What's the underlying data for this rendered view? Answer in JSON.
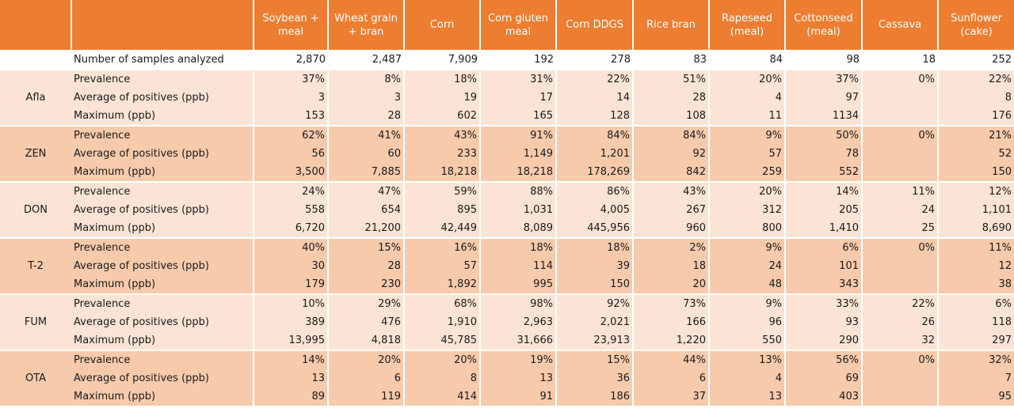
{
  "columns": [
    "",
    "",
    "Soybean + meal",
    "Wheat grain + bran",
    "Corn",
    "Corn gluten meal",
    "Corn DDGS",
    "Rice bran",
    "Rapeseed (meal)",
    "Cottonseed (meal)",
    "Cassava",
    "Sunflower (cake)"
  ],
  "samples": {
    "label": "Number of samples analyzed",
    "values": [
      "2,870",
      "2,487",
      "7,909",
      "192",
      "278",
      "83",
      "84",
      "98",
      "18",
      "252"
    ]
  },
  "groups": [
    {
      "name": "Afla",
      "shade": "light",
      "rows": [
        {
          "metric": "Prevalence",
          "values": [
            "37%",
            "8%",
            "18%",
            "31%",
            "22%",
            "51%",
            "20%",
            "37%",
            "0%",
            "22%"
          ]
        },
        {
          "metric": "Average of positives (ppb)",
          "values": [
            "3",
            "3",
            "19",
            "17",
            "14",
            "28",
            "4",
            "97",
            "",
            "8"
          ]
        },
        {
          "metric": "Maximum (ppb)",
          "values": [
            "153",
            "28",
            "602",
            "165",
            "128",
            "108",
            "11",
            "1134",
            "",
            "176"
          ]
        }
      ]
    },
    {
      "name": "ZEN",
      "shade": "dark",
      "rows": [
        {
          "metric": "Prevalence",
          "values": [
            "62%",
            "41%",
            "43%",
            "91%",
            "84%",
            "84%",
            "9%",
            "50%",
            "0%",
            "21%"
          ]
        },
        {
          "metric": "Average of positives (ppb)",
          "values": [
            "56",
            "60",
            "233",
            "1,149",
            "1,201",
            "92",
            "57",
            "78",
            "",
            "52"
          ]
        },
        {
          "metric": "Maximum (ppb)",
          "values": [
            "3,500",
            "7,885",
            "18,218",
            "18,218",
            "178,269",
            "842",
            "259",
            "552",
            "",
            "150"
          ]
        }
      ]
    },
    {
      "name": "DON",
      "shade": "light",
      "rows": [
        {
          "metric": "Prevalence",
          "values": [
            "24%",
            "47%",
            "59%",
            "88%",
            "86%",
            "43%",
            "20%",
            "14%",
            "11%",
            "12%"
          ]
        },
        {
          "metric": "Average of positives (ppb)",
          "values": [
            "558",
            "654",
            "895",
            "1,031",
            "4,005",
            "267",
            "312",
            "205",
            "24",
            "1,101"
          ]
        },
        {
          "metric": "Maximum (ppb)",
          "values": [
            "6,720",
            "21,200",
            "42,449",
            "8,089",
            "445,956",
            "960",
            "800",
            "1,410",
            "25",
            "8,690"
          ]
        }
      ]
    },
    {
      "name": "T-2",
      "shade": "dark",
      "rows": [
        {
          "metric": "Prevalence",
          "values": [
            "40%",
            "15%",
            "16%",
            "18%",
            "18%",
            "2%",
            "9%",
            "6%",
            "0%",
            "11%"
          ]
        },
        {
          "metric": "Average of positives (ppb)",
          "values": [
            "30",
            "28",
            "57",
            "114",
            "39",
            "18",
            "24",
            "101",
            "",
            "12"
          ]
        },
        {
          "metric": "Maximum (ppb)",
          "values": [
            "179",
            "230",
            "1,892",
            "995",
            "150",
            "20",
            "48",
            "343",
            "",
            "38"
          ]
        }
      ]
    },
    {
      "name": "FUM",
      "shade": "light",
      "rows": [
        {
          "metric": "Prevalence",
          "values": [
            "10%",
            "29%",
            "68%",
            "98%",
            "92%",
            "73%",
            "9%",
            "33%",
            "22%",
            "6%"
          ]
        },
        {
          "metric": "Average of positives (ppb)",
          "values": [
            "389",
            "476",
            "1,910",
            "2,963",
            "2,021",
            "166",
            "96",
            "93",
            "26",
            "118"
          ]
        },
        {
          "metric": "Maximum (ppb)",
          "values": [
            "13,995",
            "4,818",
            "45,785",
            "31,666",
            "23,913",
            "1,220",
            "550",
            "290",
            "32",
            "297"
          ]
        }
      ]
    },
    {
      "name": "OTA",
      "shade": "dark",
      "rows": [
        {
          "metric": "Prevalence",
          "values": [
            "14%",
            "20%",
            "20%",
            "19%",
            "15%",
            "44%",
            "13%",
            "56%",
            "0%",
            "32%"
          ]
        },
        {
          "metric": "Average of positives (ppb)",
          "values": [
            "13",
            "6",
            "8",
            "13",
            "36",
            "6",
            "4",
            "69",
            "",
            "7"
          ]
        },
        {
          "metric": "Maximum (ppb)",
          "values": [
            "89",
            "119",
            "414",
            "91",
            "186",
            "37",
            "13",
            "403",
            "",
            "95"
          ]
        }
      ]
    }
  ]
}
